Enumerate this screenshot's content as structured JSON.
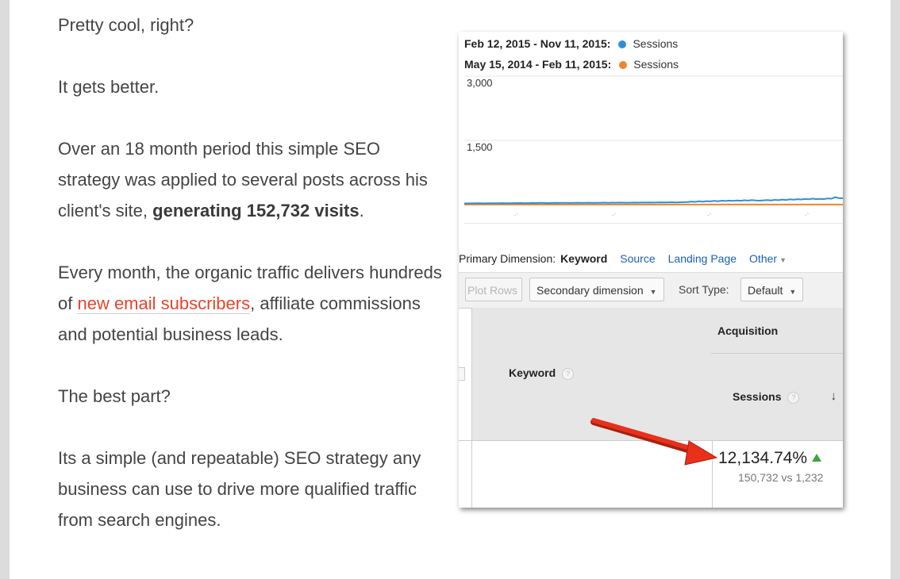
{
  "article": {
    "p1": "Pretty cool, right?",
    "p2": "It gets better.",
    "p3_before": "Over an 18 month period this simple SEO strategy was applied to several posts across his client's site, ",
    "p3_bold": "generating 152,732 visits",
    "p3_after": ".",
    "p4_before": "Every month, the organic traffic delivers hundreds of ",
    "p4_link": "new email subscribers",
    "p4_after": ", affiliate commissions and potential business leads.",
    "p5": "The best part?",
    "p6": "Its a simple (and repeatable) SEO strategy any business can use to drive more qualified traffic from search engines."
  },
  "screenshot": {
    "legend": [
      {
        "range": "Feb 12, 2015 - Nov 11, 2015:",
        "label": "Sessions",
        "color": "#2f8fd6"
      },
      {
        "range": "May 15, 2014 - Feb 11, 2015:",
        "label": "Sessions",
        "color": "#f0842c"
      }
    ],
    "chart_data": {
      "type": "line",
      "ylim": [
        0,
        3000
      ],
      "yticks": [
        "3,000",
        "1,500"
      ],
      "series": [
        {
          "name": "Sessions",
          "color": "#2f8fd6",
          "values": [
            28,
            30,
            29,
            31,
            33,
            30,
            32,
            34,
            31,
            33,
            35,
            32,
            34,
            36,
            35,
            37,
            34,
            36,
            38,
            37,
            40,
            38,
            36,
            39,
            41,
            38,
            40,
            42,
            39,
            41,
            44,
            40,
            42,
            45,
            43,
            41,
            44,
            46,
            43,
            47,
            45,
            48,
            46,
            44,
            47,
            49,
            46,
            50,
            48,
            52,
            49,
            51,
            54,
            50,
            53,
            56,
            52,
            55,
            58,
            60,
            72,
            65,
            78,
            70,
            82,
            75,
            88,
            80,
            92,
            85,
            95,
            88,
            98,
            90,
            102,
            94,
            105,
            96,
            92,
            100,
            108,
            98,
            112,
            104,
            118,
            110,
            125,
            115,
            128,
            120,
            132,
            124,
            140,
            128,
            135,
            130,
            145,
            138,
            175,
            150,
            148
          ]
        },
        {
          "name": "Sessions",
          "color": "#f0842c",
          "values": [
            1,
            1,
            1,
            1,
            1,
            1,
            1,
            1,
            1,
            1,
            1,
            1,
            1,
            1,
            1,
            1,
            1,
            1,
            1,
            1,
            1,
            1,
            1,
            1,
            1,
            1,
            1,
            1,
            1,
            1,
            1,
            1,
            1,
            1,
            1,
            1,
            1,
            1,
            1,
            1,
            1,
            1,
            1,
            1,
            1,
            1,
            1,
            1,
            1,
            1,
            1,
            1,
            1,
            1,
            1,
            1,
            1,
            1,
            1,
            1,
            1,
            1,
            1,
            1,
            1,
            1,
            1,
            1,
            1,
            1,
            1,
            1,
            1,
            1,
            1,
            1,
            1,
            1,
            1,
            1,
            1,
            1,
            1,
            1,
            1,
            1,
            1,
            1,
            1,
            1,
            1,
            1,
            1,
            1,
            1,
            1,
            1,
            1,
            1,
            1,
            1
          ]
        }
      ]
    },
    "primary_dimension": {
      "label": "Primary Dimension:",
      "current": "Keyword",
      "links": [
        "Source",
        "Landing Page",
        "Other"
      ]
    },
    "toolbar": {
      "plot_rows": "Plot Rows",
      "secondary_dimension": "Secondary dimension",
      "sort_type_label": "Sort Type:",
      "sort_type_value": "Default"
    },
    "table": {
      "col_keyword": "Keyword",
      "group_acquisition": "Acquisition",
      "col_sessions": "Sessions",
      "help_glyph": "?",
      "sort_glyph": "↓",
      "row": {
        "change": "12,134.74%",
        "comparison": "150,732 vs 1,232"
      }
    }
  }
}
